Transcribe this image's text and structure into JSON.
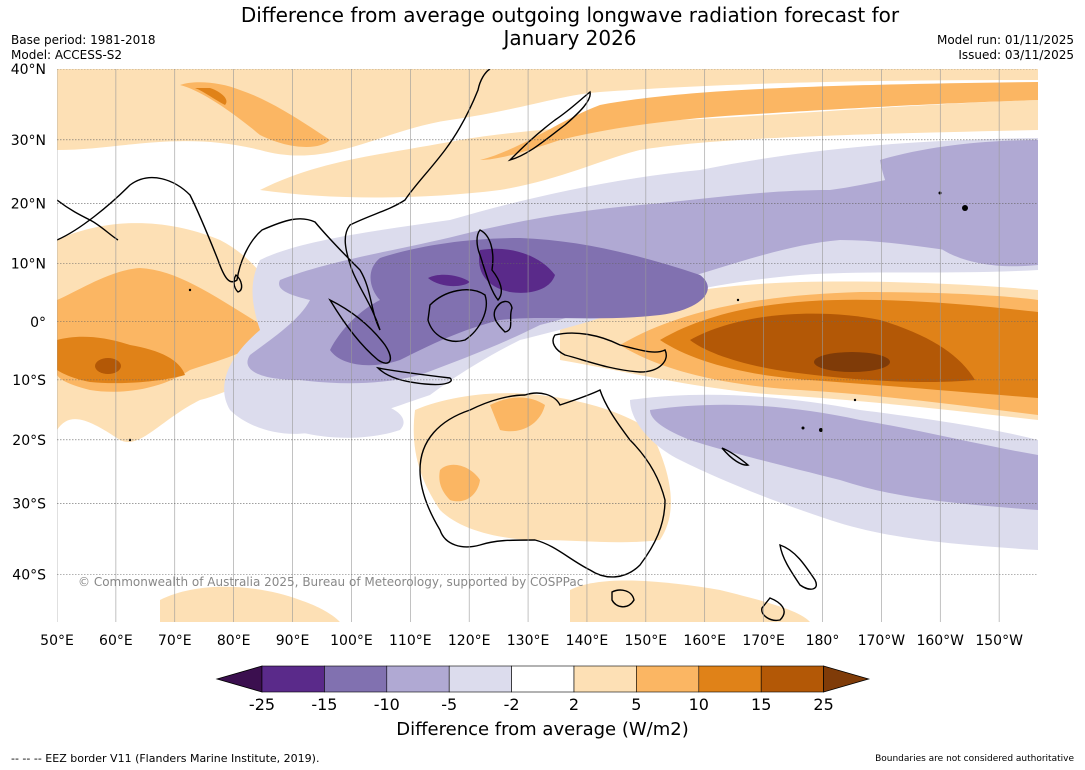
{
  "title": "Difference from average outgoing longwave radiation forecast for January 2026",
  "title_lines": [
    "Difference from average outgoing longwave radiation forecast for",
    "January 2026"
  ],
  "meta_left": {
    "base_period": "Base period: 1981-2018",
    "model": "Model: ACCESS-S2"
  },
  "meta_right": {
    "model_run": "Model run: 01/11/2025",
    "issued": "Issued: 03/11/2025"
  },
  "map": {
    "lat_labels": [
      "40°N",
      "30°N",
      "20°N",
      "10°N",
      "0°",
      "10°S",
      "20°S",
      "30°S",
      "40°S"
    ],
    "lat_values": [
      40,
      30,
      20,
      10,
      0,
      -10,
      -20,
      -30,
      -40
    ],
    "lon_labels": [
      "50°E",
      "60°E",
      "70°E",
      "80°E",
      "90°E",
      "100°E",
      "110°E",
      "120°E",
      "130°E",
      "140°E",
      "150°E",
      "160°E",
      "170°E",
      "180°",
      "170°W",
      "160°W",
      "150°W"
    ],
    "lon_values": [
      50,
      60,
      70,
      80,
      90,
      100,
      110,
      120,
      130,
      140,
      150,
      160,
      170,
      180,
      190,
      200,
      210
    ],
    "lon_range": [
      50,
      216.6
    ],
    "lat_range": [
      -46,
      40
    ],
    "copyright": "© Commonwealth of Australia 2025, Bureau of Meteorology, supported by COSPPac"
  },
  "colorbar": {
    "title": "Difference from average (W/m2)",
    "ticks": [
      "-25",
      "-15",
      "-10",
      "-5",
      "-2",
      "2",
      "5",
      "10",
      "15",
      "25"
    ],
    "colors": [
      "#3b0f4f",
      "#5a2a8a",
      "#8171b0",
      "#b0a9d3",
      "#dcdced",
      "#ffffff",
      "#fde0b5",
      "#fbb663",
      "#e08218",
      "#b35806",
      "#7f3b08"
    ]
  },
  "footer": {
    "eez_note": "--  --  -- EEZ border V11 (Flanders Marine Institute, 2019).",
    "boundaries_note": "Boundaries are not considered authoritative"
  }
}
